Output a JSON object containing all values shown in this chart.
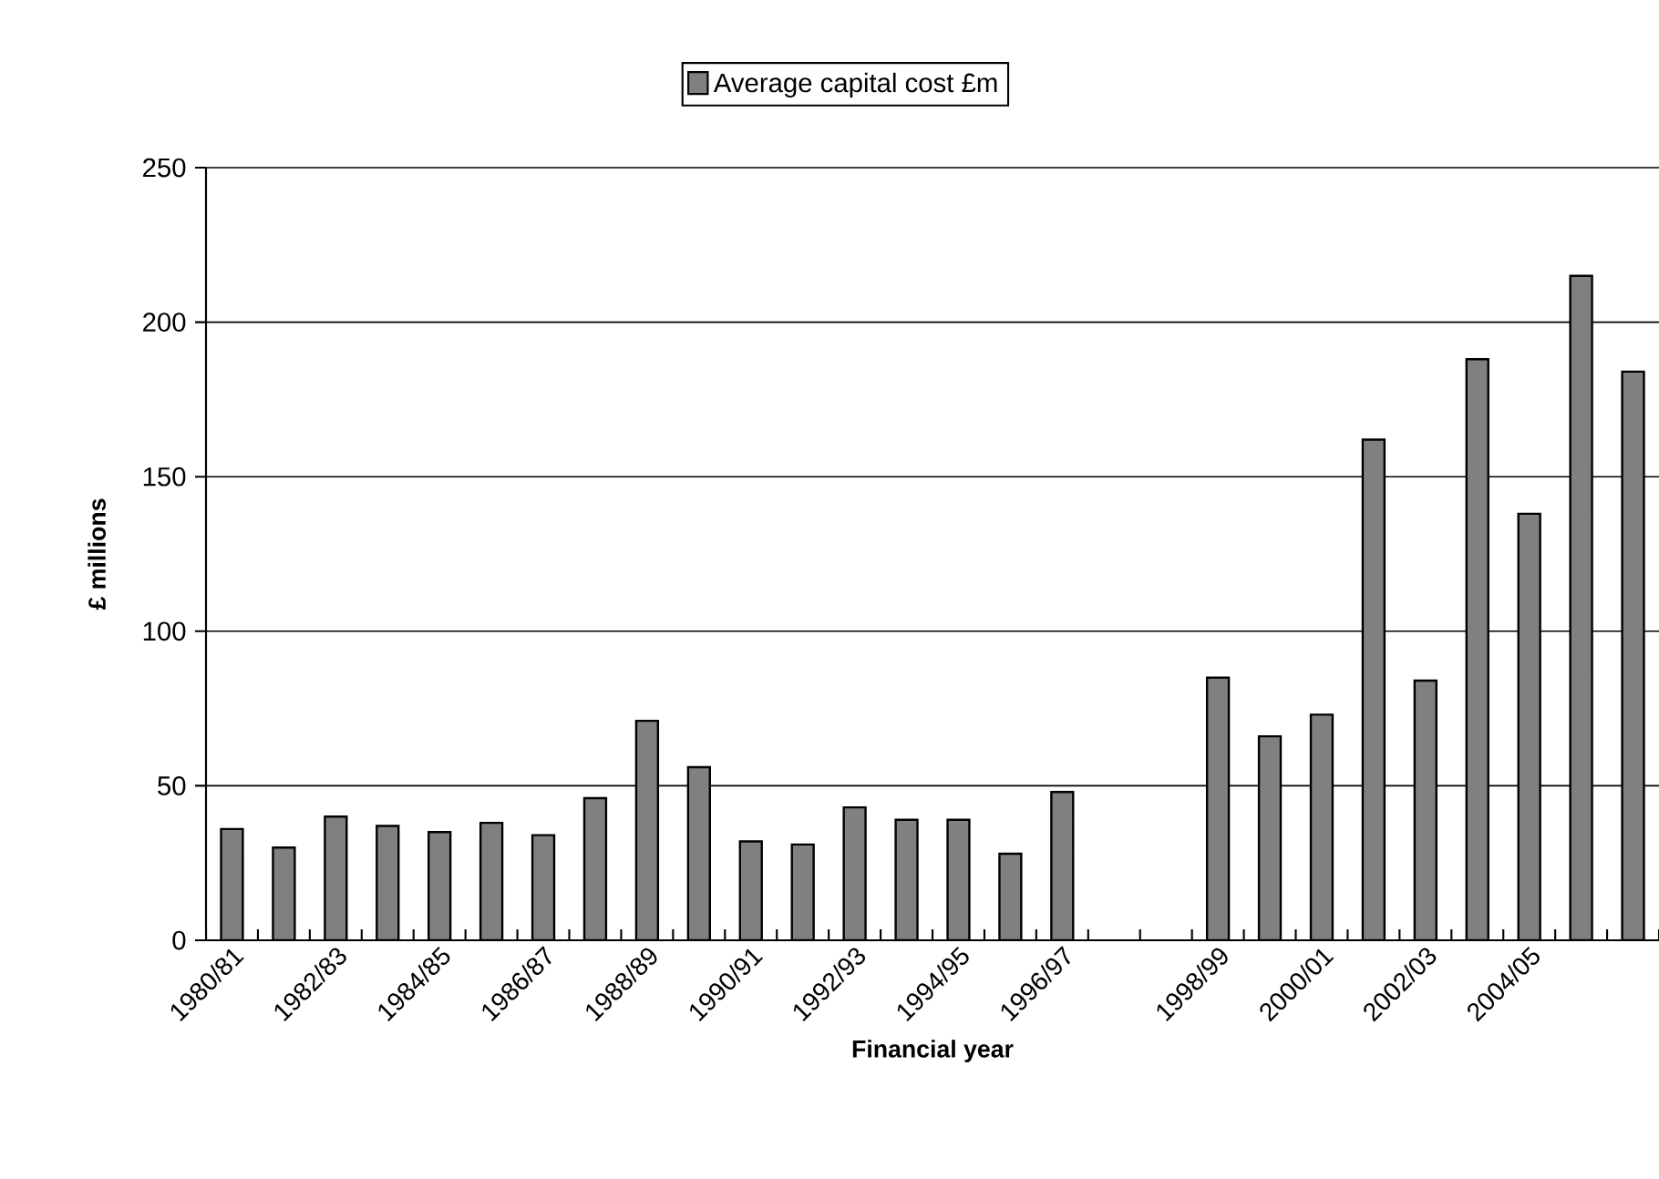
{
  "chart_data": {
    "type": "bar",
    "xlabel": "Financial year",
    "ylabel": "£ millions",
    "legend": "top",
    "grid": "y",
    "categories": [
      "1980/81",
      null,
      "1982/83",
      null,
      "1984/85",
      null,
      "1986/87",
      null,
      "1988/89",
      null,
      "1990/91",
      null,
      "1992/93",
      null,
      "1994/95",
      null,
      "1996/97",
      null,
      null,
      "1998/99",
      null,
      "2000/01",
      null,
      "2002/03",
      null,
      "2004/05",
      null,
      null
    ],
    "series": [
      {
        "name": "Average capital cost £m",
        "color": "#808080",
        "values": [
          36,
          30,
          40,
          37,
          35,
          38,
          34,
          46,
          71,
          56,
          32,
          31,
          43,
          39,
          39,
          28,
          48,
          null,
          null,
          85,
          66,
          73,
          162,
          84,
          188,
          138,
          215,
          184
        ]
      }
    ],
    "ylim": [
      0,
      250
    ],
    "yticks": [
      0,
      50,
      100,
      150,
      200,
      250
    ]
  }
}
